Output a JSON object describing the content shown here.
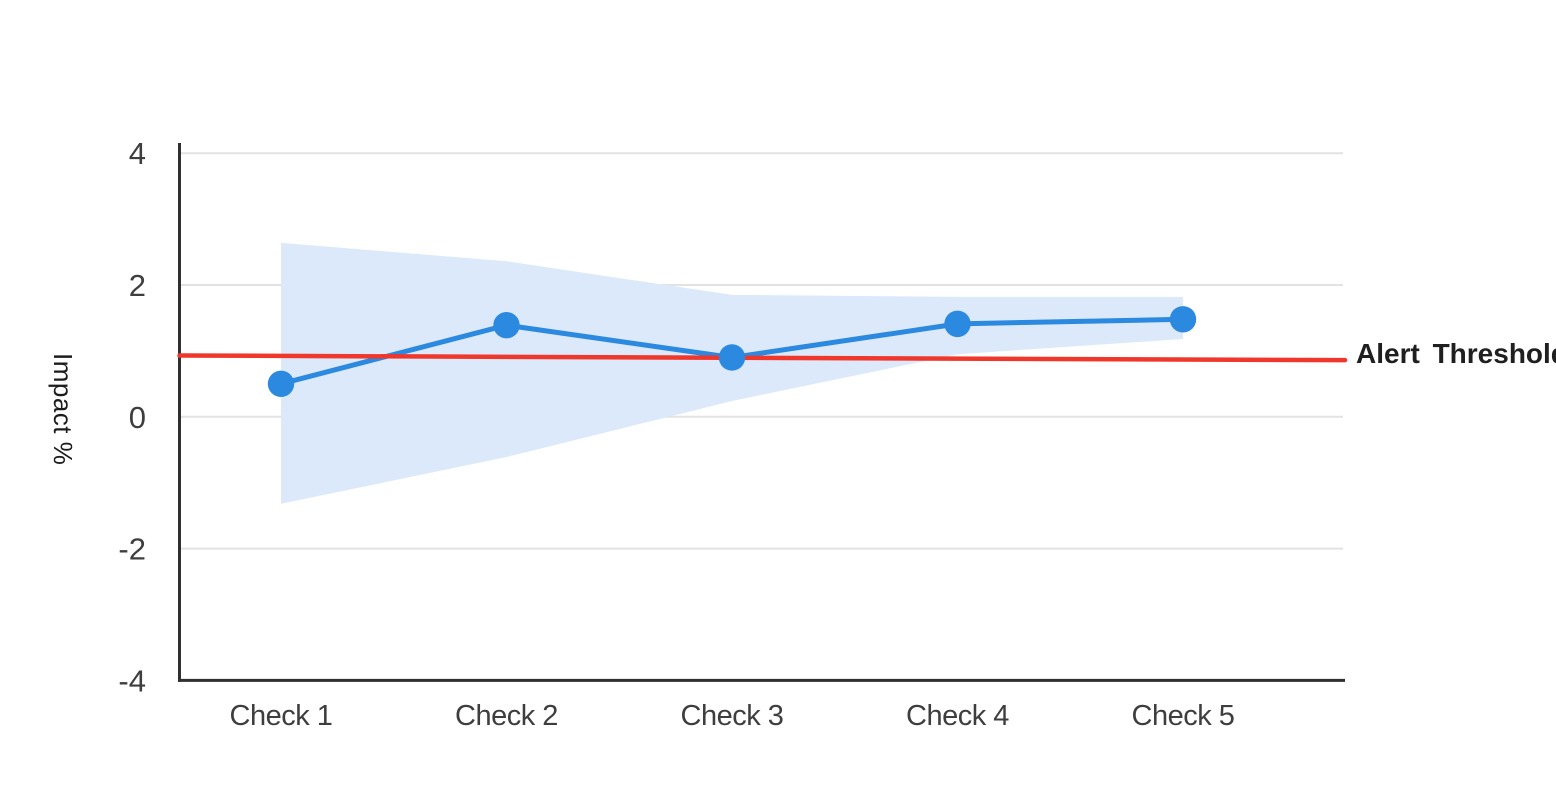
{
  "chart_data": {
    "type": "line",
    "title": "",
    "categories": [
      "Check 1",
      "Check 2",
      "Check 3",
      "Check 4",
      "Check 5"
    ],
    "series": [
      {
        "name": "Impact %",
        "values": [
          0.5,
          1.39,
          0.9,
          1.41,
          1.48
        ]
      }
    ],
    "confidence_band": {
      "upper": [
        2.64,
        2.36,
        1.85,
        1.82,
        1.82
      ],
      "lower": [
        -1.32,
        -0.61,
        0.24,
        0.95,
        1.18
      ]
    },
    "threshold": {
      "label": "Alert Threshold",
      "value": 0.9,
      "start_value": 0.93,
      "end_value": 0.86
    },
    "xlabel": "",
    "ylabel": "Impact %",
    "ylim": [
      -4,
      4.2
    ],
    "yticks": [
      4,
      2,
      0,
      -2,
      -4
    ],
    "grid": true,
    "legend_position": "label-right-of-threshold-line",
    "marker": "circle"
  },
  "colors": {
    "line": "#2b89e0",
    "marker": "#2b89e0",
    "band": "#dbe9fb",
    "threshold": "#f0372b",
    "grid": "#e2e2e2",
    "axis": "#303030",
    "tick_text": "#3e3e3e",
    "axis_title_text": "#1c1c1c",
    "threshold_label_text": "#1f1f1f",
    "background": "#ffffff"
  }
}
